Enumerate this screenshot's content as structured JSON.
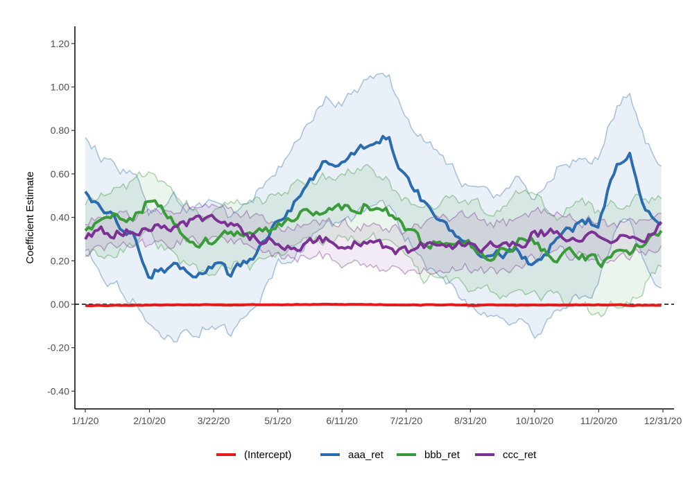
{
  "chart_data": {
    "type": "line",
    "title": "",
    "xlabel": "",
    "ylabel": "Coefficient Estimate",
    "x_ticks": [
      "1/1/20",
      "2/10/20",
      "3/22/20",
      "5/1/20",
      "6/11/20",
      "7/21/20",
      "8/31/20",
      "10/10/20",
      "11/20/20",
      "12/31/20"
    ],
    "y_ticks": [
      "-0.40",
      "-0.20",
      "0.00",
      "0.20",
      "0.40",
      "0.60",
      "0.80",
      "1.00",
      "1.20"
    ],
    "xlim": [
      "2020-01-01",
      "2020-12-31"
    ],
    "ylim": [
      -0.47,
      1.27
    ],
    "grid": false,
    "legend_position": "bottom",
    "reference_line": {
      "y": 0,
      "style": "dashed",
      "color": "#000000"
    },
    "x": [
      "2020-01-01",
      "2020-01-15",
      "2020-02-01",
      "2020-02-10",
      "2020-02-25",
      "2020-03-10",
      "2020-03-22",
      "2020-04-01",
      "2020-04-15",
      "2020-05-01",
      "2020-05-15",
      "2020-06-01",
      "2020-06-11",
      "2020-06-25",
      "2020-07-10",
      "2020-07-21",
      "2020-08-01",
      "2020-08-15",
      "2020-08-31",
      "2020-09-15",
      "2020-10-01",
      "2020-10-10",
      "2020-10-25",
      "2020-11-10",
      "2020-11-20",
      "2020-12-01",
      "2020-12-10",
      "2020-12-20",
      "2020-12-31"
    ],
    "series": [
      {
        "name": "(Intercept)",
        "color": "#e41a1c",
        "values": [
          -0.005,
          -0.005,
          -0.004,
          -0.003,
          -0.003,
          -0.002,
          -0.001,
          -0.002,
          -0.002,
          -0.002,
          -0.002,
          -0.001,
          -0.001,
          -0.001,
          -0.002,
          -0.002,
          -0.003,
          -0.003,
          -0.004,
          -0.004,
          -0.004,
          -0.004,
          -0.004,
          -0.004,
          -0.003,
          -0.004,
          -0.004,
          -0.005,
          -0.005
        ],
        "lower": [
          -0.01,
          -0.01,
          -0.009,
          -0.008,
          -0.008,
          -0.007,
          -0.006,
          -0.007,
          -0.007,
          -0.007,
          -0.007,
          -0.006,
          -0.006,
          -0.006,
          -0.007,
          -0.007,
          -0.008,
          -0.008,
          -0.009,
          -0.009,
          -0.009,
          -0.009,
          -0.009,
          -0.009,
          -0.008,
          -0.009,
          -0.009,
          -0.01,
          -0.01
        ],
        "upper": [
          0.0,
          0.0,
          0.001,
          0.002,
          0.002,
          0.003,
          0.004,
          0.003,
          0.003,
          0.003,
          0.003,
          0.004,
          0.004,
          0.004,
          0.003,
          0.003,
          0.002,
          0.002,
          0.001,
          0.001,
          0.001,
          0.001,
          0.001,
          0.001,
          0.002,
          0.001,
          0.001,
          0.0,
          0.0
        ]
      },
      {
        "name": "aaa_ret",
        "color": "#2b6cb0",
        "values": [
          0.53,
          0.4,
          0.32,
          0.15,
          0.18,
          0.14,
          0.18,
          0.13,
          0.2,
          0.4,
          0.48,
          0.68,
          0.64,
          0.72,
          0.78,
          0.6,
          0.48,
          0.38,
          0.26,
          0.22,
          0.25,
          0.15,
          0.3,
          0.37,
          0.38,
          0.62,
          0.7,
          0.45,
          0.36
        ],
        "lower": [
          0.26,
          0.12,
          0.02,
          -0.12,
          -0.15,
          -0.13,
          -0.08,
          -0.14,
          -0.05,
          0.18,
          0.24,
          0.4,
          0.36,
          0.43,
          0.45,
          0.32,
          0.2,
          0.1,
          0.0,
          -0.05,
          -0.08,
          -0.16,
          -0.02,
          0.05,
          0.08,
          0.32,
          0.4,
          0.17,
          0.07
        ],
        "upper": [
          0.78,
          0.65,
          0.6,
          0.42,
          0.5,
          0.42,
          0.5,
          0.4,
          0.48,
          0.62,
          0.74,
          0.95,
          0.93,
          1.02,
          1.05,
          0.88,
          0.76,
          0.66,
          0.53,
          0.5,
          0.58,
          0.45,
          0.62,
          0.69,
          0.68,
          0.9,
          0.98,
          0.74,
          0.64
        ]
      },
      {
        "name": "bbb_ret",
        "color": "#3a9b3a",
        "values": [
          0.35,
          0.38,
          0.42,
          0.48,
          0.38,
          0.3,
          0.28,
          0.34,
          0.3,
          0.36,
          0.42,
          0.44,
          0.44,
          0.46,
          0.42,
          0.34,
          0.28,
          0.3,
          0.28,
          0.22,
          0.3,
          0.28,
          0.2,
          0.24,
          0.18,
          0.22,
          0.25,
          0.3,
          0.34
        ],
        "lower": [
          0.23,
          0.24,
          0.28,
          0.32,
          0.22,
          0.16,
          0.14,
          0.2,
          0.16,
          0.22,
          0.28,
          0.3,
          0.3,
          0.32,
          0.28,
          0.2,
          0.12,
          0.12,
          0.08,
          0.05,
          0.06,
          0.06,
          0.02,
          0.0,
          -0.05,
          0.0,
          0.02,
          0.1,
          0.19
        ],
        "upper": [
          0.47,
          0.52,
          0.56,
          0.62,
          0.54,
          0.44,
          0.42,
          0.48,
          0.44,
          0.5,
          0.56,
          0.58,
          0.6,
          0.62,
          0.56,
          0.48,
          0.44,
          0.48,
          0.48,
          0.4,
          0.52,
          0.5,
          0.4,
          0.48,
          0.42,
          0.46,
          0.48,
          0.5,
          0.49
        ]
      },
      {
        "name": "ccc_ret",
        "color": "#7b3294",
        "values": [
          0.31,
          0.33,
          0.34,
          0.34,
          0.36,
          0.38,
          0.4,
          0.38,
          0.32,
          0.28,
          0.28,
          0.3,
          0.28,
          0.28,
          0.25,
          0.24,
          0.26,
          0.28,
          0.28,
          0.26,
          0.28,
          0.32,
          0.34,
          0.3,
          0.3,
          0.29,
          0.3,
          0.32,
          0.36
        ],
        "lower": [
          0.24,
          0.26,
          0.27,
          0.27,
          0.28,
          0.3,
          0.31,
          0.3,
          0.26,
          0.22,
          0.21,
          0.22,
          0.2,
          0.19,
          0.16,
          0.14,
          0.16,
          0.17,
          0.17,
          0.15,
          0.18,
          0.22,
          0.24,
          0.22,
          0.22,
          0.22,
          0.23,
          0.24,
          0.27
        ],
        "upper": [
          0.38,
          0.4,
          0.41,
          0.41,
          0.44,
          0.46,
          0.48,
          0.46,
          0.4,
          0.35,
          0.36,
          0.38,
          0.36,
          0.37,
          0.34,
          0.34,
          0.36,
          0.39,
          0.39,
          0.37,
          0.38,
          0.42,
          0.44,
          0.38,
          0.38,
          0.36,
          0.37,
          0.4,
          0.45
        ]
      }
    ]
  }
}
